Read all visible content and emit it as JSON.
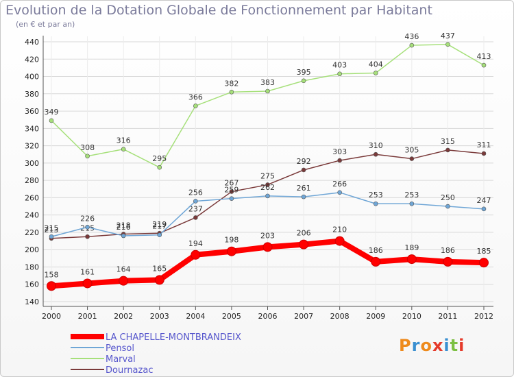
{
  "chart_data": {
    "type": "line",
    "title": "Evolution de la Dotation Globale de Fonctionnement par Habitant",
    "subtitle": "(en € et par an)",
    "categories": [
      "2000",
      "2001",
      "2002",
      "2003",
      "2004",
      "2005",
      "2006",
      "2007",
      "2008",
      "2009",
      "2010",
      "2011",
      "2012"
    ],
    "ylim": [
      140,
      440
    ],
    "yticks": [
      140,
      160,
      180,
      200,
      220,
      240,
      260,
      280,
      300,
      320,
      340,
      360,
      380,
      400,
      420,
      440
    ],
    "series": [
      {
        "name": "LA CHAPELLE-MONTBRANDEIX",
        "color": "#ff0000",
        "values": [
          158,
          161,
          164,
          165,
          194,
          198,
          203,
          206,
          210,
          186,
          189,
          186,
          185
        ]
      },
      {
        "name": "Pensol",
        "color": "#6fa6d6",
        "values": [
          215,
          226,
          216,
          217,
          256,
          259,
          262,
          261,
          266,
          253,
          253,
          250,
          247
        ]
      },
      {
        "name": "Marval",
        "color": "#a6e07a",
        "values": [
          349,
          308,
          316,
          295,
          366,
          382,
          383,
          395,
          403,
          404,
          436,
          437,
          413
        ]
      },
      {
        "name": "Dournazac",
        "color": "#7a3a3a",
        "values": [
          213,
          215,
          218,
          219,
          237,
          267,
          275,
          292,
          303,
          310,
          305,
          315,
          311
        ]
      }
    ]
  },
  "logo": {
    "text": "Proxiti"
  }
}
